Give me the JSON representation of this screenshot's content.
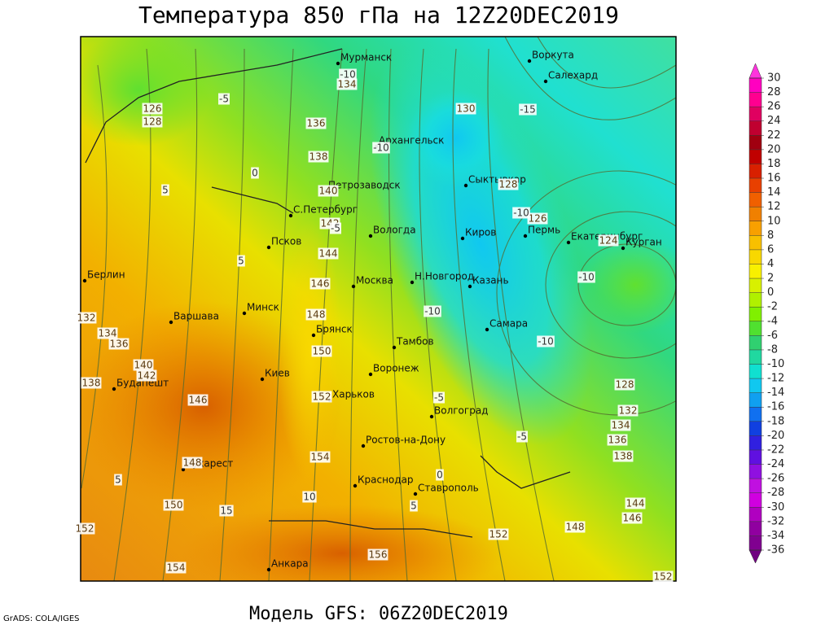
{
  "header": {
    "title": "Температура 850 гПа на 12Z20DEC2019"
  },
  "footer": {
    "model": "Модель GFS: 06Z20DEC2019",
    "credit": "GrADS: COLA/IGES"
  },
  "map": {
    "cities": [
      "Мурманск",
      "Воркута",
      "Салехард",
      "Архангельск",
      "Петрозаводск",
      "Сыктывкар",
      "С.Петербург",
      "Вологда",
      "Киров",
      "Пермь",
      "Екатеринбург",
      "Курган",
      "Псков",
      "Н.Новгород",
      "Москва",
      "Казань",
      "Берлин",
      "Варшава",
      "Минск",
      "Самара",
      "Брянск",
      "Тамбов",
      "Киев",
      "Будапешт",
      "Воронеж",
      "Харьков",
      "Волгоград",
      "Ростов-на-Дону",
      "Бухарест",
      "Краснодар",
      "Ставрополь",
      "Анкара"
    ],
    "height_labels": [
      134,
      126,
      128,
      136,
      138,
      130,
      140,
      128,
      126,
      142,
      144,
      146,
      148,
      150,
      152,
      154,
      150,
      148,
      146,
      142,
      140,
      138,
      136,
      134,
      132,
      124,
      128,
      132,
      134,
      136,
      138,
      144,
      146,
      148,
      152,
      156,
      154,
      152,
      152
    ],
    "temp_labels": [
      -5,
      -10,
      -15,
      -10,
      0,
      5,
      -10,
      -10,
      -10,
      -10,
      -5,
      -5,
      0,
      5,
      10,
      15,
      5,
      5,
      -5
    ]
  },
  "colorbar": {
    "ticks": [
      30,
      28,
      26,
      24,
      22,
      20,
      18,
      16,
      14,
      12,
      10,
      8,
      6,
      4,
      2,
      0,
      -2,
      -4,
      -6,
      -8,
      -10,
      -12,
      -14,
      -16,
      -18,
      -20,
      -22,
      -24,
      -26,
      -28,
      -30,
      -32,
      -34,
      -36
    ],
    "colors": [
      "#ff33dd",
      "#ff00c0",
      "#ff0090",
      "#e00060",
      "#c00030",
      "#a00010",
      "#c00000",
      "#d82000",
      "#e84000",
      "#f06000",
      "#f08000",
      "#f8a000",
      "#f8c000",
      "#f8d800",
      "#f8f000",
      "#d8f000",
      "#b0f000",
      "#80f000",
      "#50e030",
      "#30d070",
      "#20d8a0",
      "#10e0d0",
      "#10c8f0",
      "#10a0f0",
      "#1070f0",
      "#1040e0",
      "#3020e0",
      "#6010e0",
      "#9010e0",
      "#c010e0",
      "#d000e0",
      "#b000c0",
      "#9000a0",
      "#800090",
      "#700080"
    ]
  }
}
